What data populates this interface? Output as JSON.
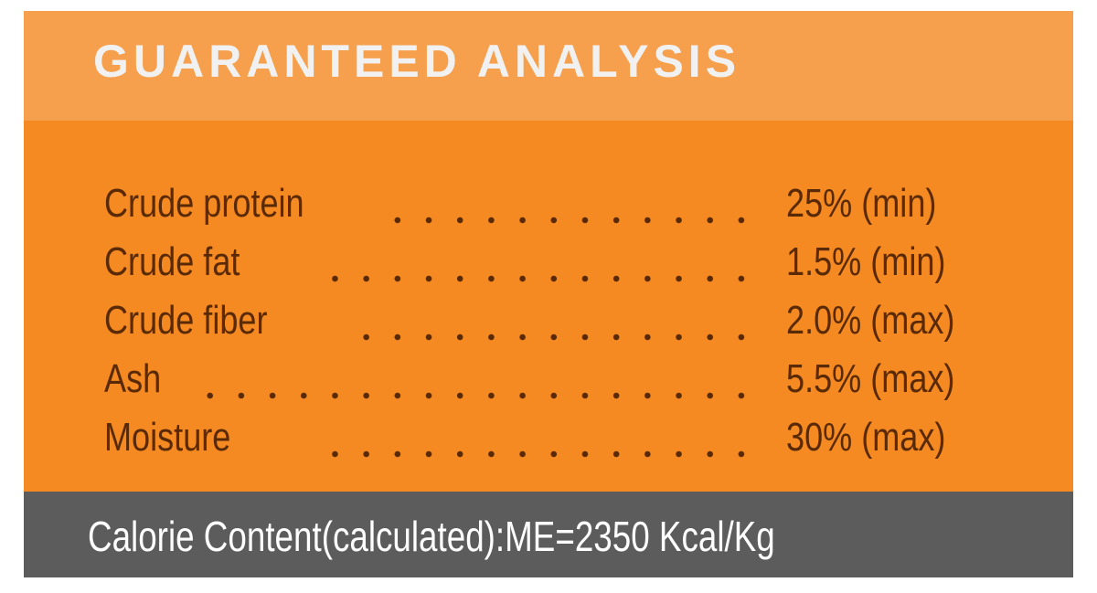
{
  "header": {
    "title": "GUARANTEED ANALYSIS"
  },
  "analysis": [
    {
      "label": "Crude protein",
      "value": "25% (min)"
    },
    {
      "label": "Crude fat",
      "value": "1.5% (min)"
    },
    {
      "label": "Crude fiber",
      "value": "2.0% (max)"
    },
    {
      "label": "Ash",
      "value": "5.5% (max)"
    },
    {
      "label": "Moisture",
      "value": "30% (max)"
    }
  ],
  "footer": {
    "calorie_content": "Calorie Content(calculated):ME=2350 Kcal/Kg"
  },
  "colors": {
    "header": "#f6a04d",
    "body": "#f48a21",
    "footer": "#5c5c5c",
    "text": "#5a2a06"
  }
}
